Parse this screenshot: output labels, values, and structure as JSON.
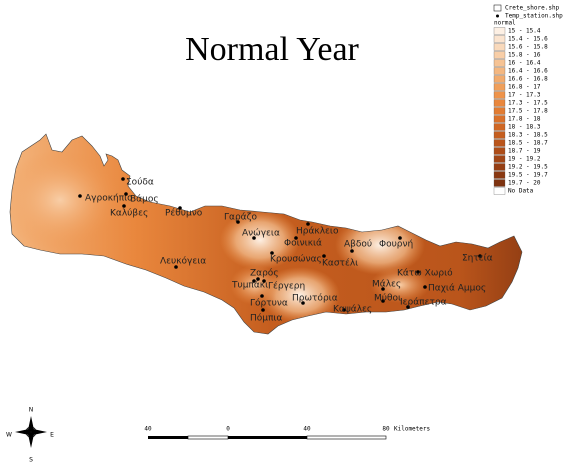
{
  "title": "Normal Year",
  "legend": {
    "layers": [
      "Crete_shore.shp",
      "Temp_station.shp"
    ],
    "field": "normal",
    "classes": [
      {
        "label": "15 - 15.4",
        "color": "#fdf0e4"
      },
      {
        "label": "15.4 - 15.6",
        "color": "#fbe4cf"
      },
      {
        "label": "15.6 - 15.8",
        "color": "#f9d9bb"
      },
      {
        "label": "15.8 - 16",
        "color": "#f8cea7"
      },
      {
        "label": "16 - 16.4",
        "color": "#f6c394"
      },
      {
        "label": "16.4 - 16.6",
        "color": "#f4b780"
      },
      {
        "label": "16.6 - 16.8",
        "color": "#f2ab6d"
      },
      {
        "label": "16.8 - 17",
        "color": "#f09f5a"
      },
      {
        "label": "17 - 17.3",
        "color": "#ee934a"
      },
      {
        "label": "17.3 - 17.5",
        "color": "#e9873d"
      },
      {
        "label": "17.5 - 17.8",
        "color": "#e27c32"
      },
      {
        "label": "17.8 - 18",
        "color": "#da712a"
      },
      {
        "label": "18 - 18.3",
        "color": "#d06724"
      },
      {
        "label": "18.3 - 18.5",
        "color": "#c55e1f"
      },
      {
        "label": "18.5 - 18.7",
        "color": "#ba551b"
      },
      {
        "label": "18.7 - 19",
        "color": "#ae4d18"
      },
      {
        "label": "19 - 19.2",
        "color": "#a24616"
      },
      {
        "label": "19.2 - 19.5",
        "color": "#963f14"
      },
      {
        "label": "19.5 - 19.7",
        "color": "#8a3912"
      },
      {
        "label": "19.7 - 20",
        "color": "#7e3310"
      }
    ],
    "no_data": "No Data"
  },
  "stations": [
    "Σούδα",
    "Αγροκήπιο",
    "Βάμος",
    "Καλύβες",
    "Ρέθυμνο",
    "Γαράζο",
    "Ηράκλειο",
    "Ανώγεια",
    "Φοινικιά",
    "Αβδού",
    "Φουρνή",
    "Κρουσώνας",
    "Καστέλι",
    "Λευκόγεια",
    "Σητεία",
    "Κάτω Χωριό",
    "Ζαρός",
    "Μάλες",
    "Τυμπάκι",
    "Γέργερη",
    "Παχιά Αμμος",
    "Πρωτόρια",
    "Μύθοι",
    "Ιεράπετρα",
    "Καψάλες",
    "Γόρτυνα",
    "Πόμπια"
  ],
  "scale_bar": {
    "labels": [
      "40",
      "0",
      "40",
      "80"
    ],
    "unit": "Kilometers"
  },
  "north_arrow": {
    "n": "N",
    "e": "E",
    "w": "W",
    "s": "S"
  }
}
